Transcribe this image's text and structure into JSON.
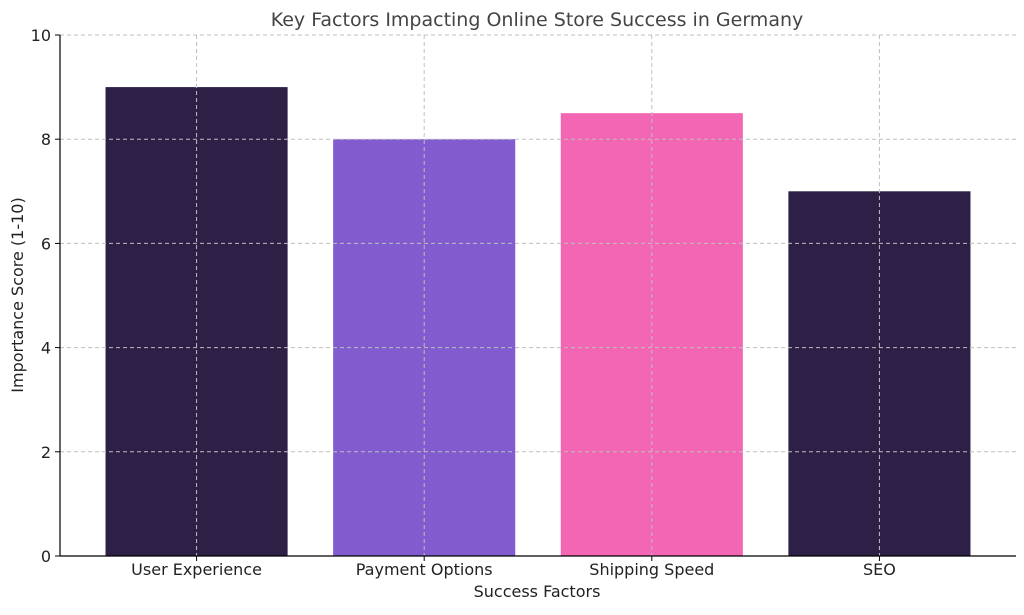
{
  "chart_data": {
    "type": "bar",
    "title": "Key Factors Impacting Online Store Success in Germany",
    "xlabel": "Success Factors",
    "ylabel": "Importance Score (1-10)",
    "categories": [
      "User Experience",
      "Payment Options",
      "Shipping Speed",
      "SEO"
    ],
    "values": [
      9,
      8,
      8.5,
      7
    ],
    "colors": [
      "#2e1f47",
      "#825ccf",
      "#f266b4",
      "#2e1f47"
    ],
    "ylim": [
      0,
      10
    ],
    "yticks": [
      0,
      2,
      4,
      6,
      8,
      10
    ],
    "grid": true,
    "legend": "none"
  }
}
